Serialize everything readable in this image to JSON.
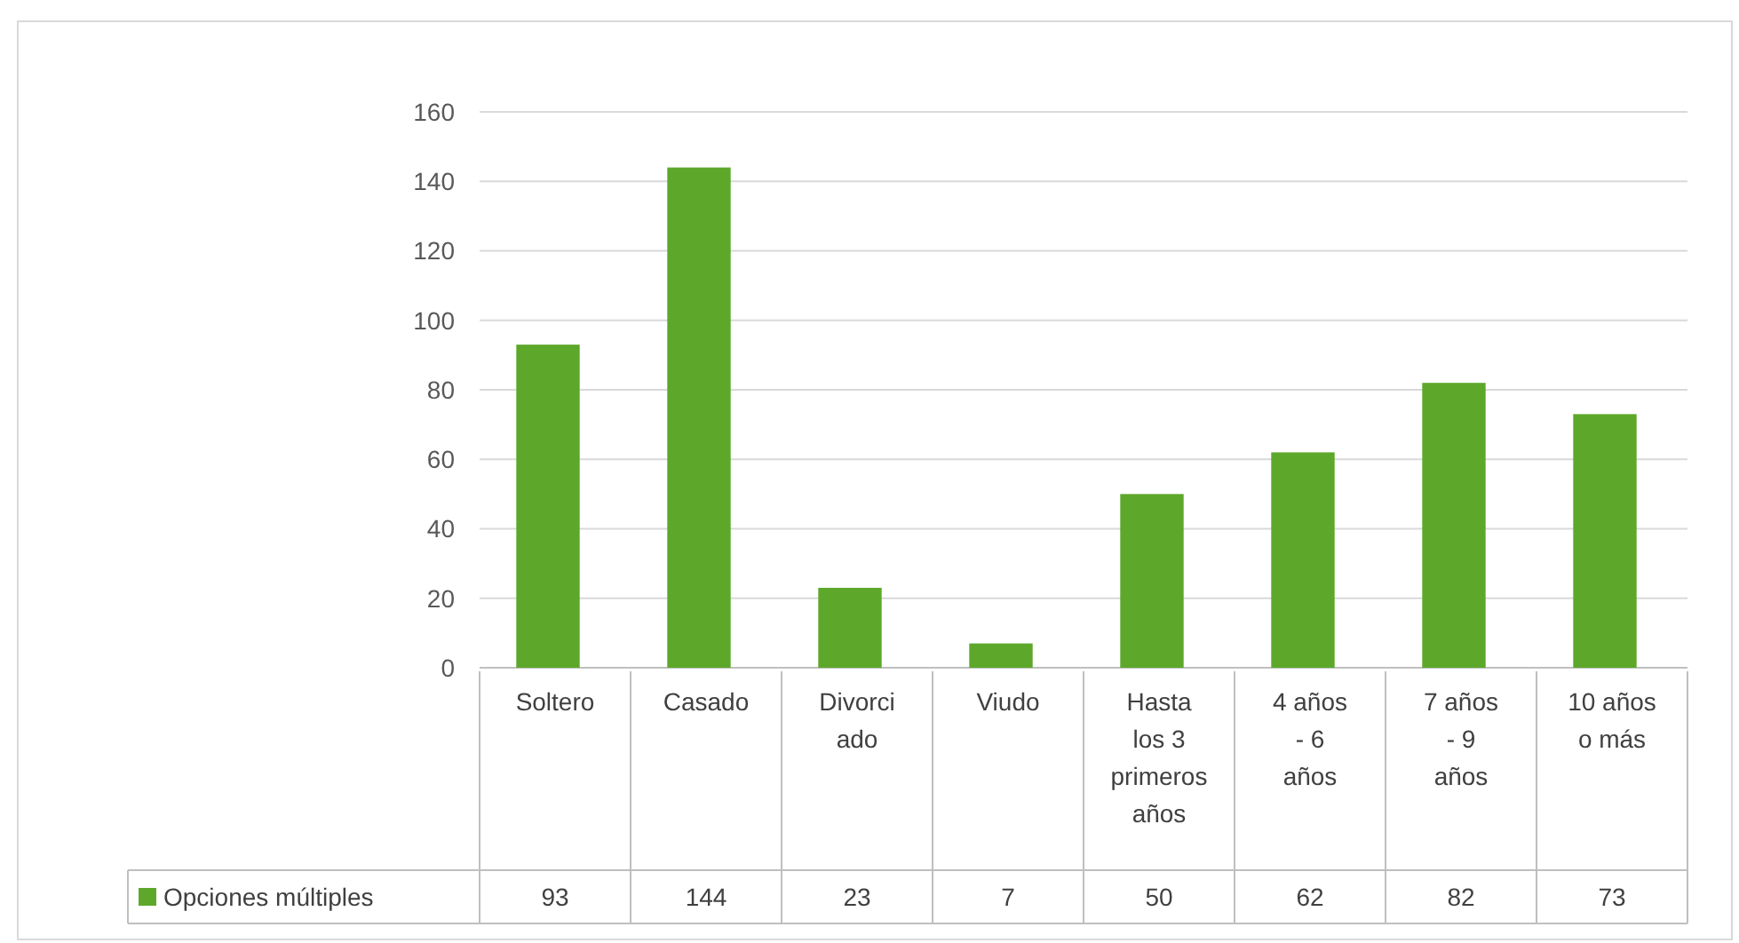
{
  "chart_data": {
    "type": "bar",
    "categories": [
      "Soltero",
      "Casado",
      "Divorciado",
      "Viudo",
      "Hasta los 3 primeros años",
      "4 años - 6 años",
      "7 años - 9 años",
      "10 años o más"
    ],
    "series": [
      {
        "name": "Opciones múltiples",
        "color": "#5da82a",
        "values": [
          93,
          144,
          23,
          7,
          50,
          62,
          82,
          73
        ]
      }
    ],
    "ylim": [
      0,
      160
    ],
    "yticks": [
      0,
      20,
      40,
      60,
      80,
      100,
      120,
      140,
      160
    ],
    "grid": "y",
    "data_labels": true,
    "legend": "bottom"
  }
}
